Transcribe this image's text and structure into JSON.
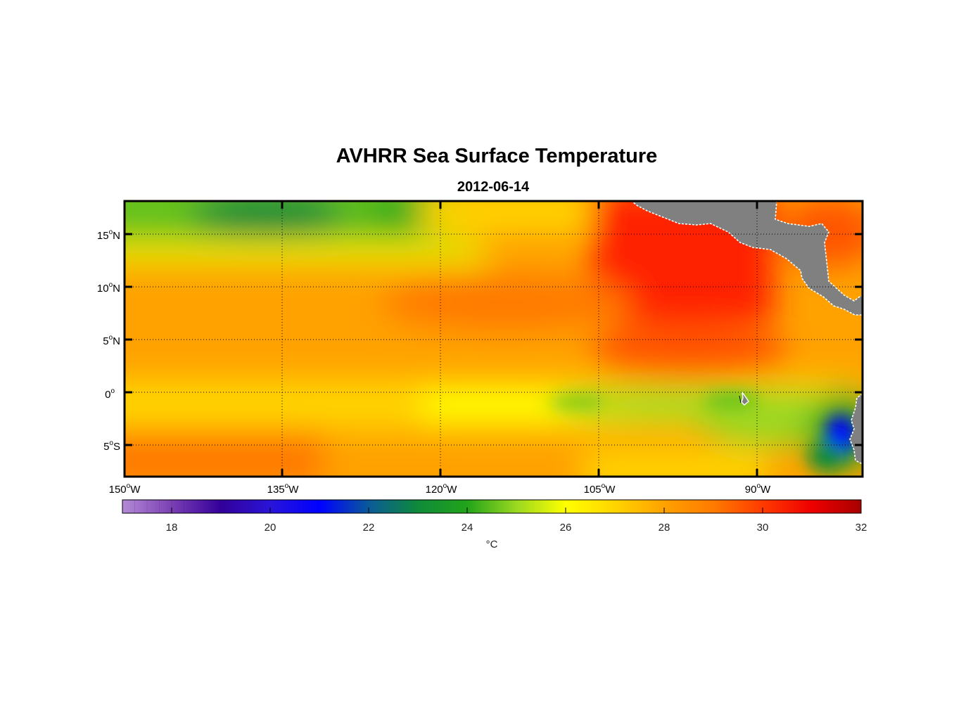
{
  "title": "AVHRR Sea Surface Temperature",
  "subtitle": "2012-06-14",
  "lat_labels": [
    {
      "deg": "15",
      "hemi": "N"
    },
    {
      "deg": "10",
      "hemi": "N"
    },
    {
      "deg": "5",
      "hemi": "N"
    },
    {
      "deg": "0",
      "hemi": ""
    },
    {
      "deg": "5",
      "hemi": "S"
    }
  ],
  "lon_labels": [
    {
      "deg": "150",
      "hemi": "W"
    },
    {
      "deg": "135",
      "hemi": "W"
    },
    {
      "deg": "120",
      "hemi": "W"
    },
    {
      "deg": "105",
      "hemi": "W"
    },
    {
      "deg": "90",
      "hemi": "W"
    }
  ],
  "colorbar": {
    "ticks": [
      "18",
      "20",
      "22",
      "24",
      "26",
      "28",
      "30",
      "32"
    ],
    "min": 17,
    "max": 32,
    "unit": "°C"
  },
  "colors": {
    "land": "#808080",
    "sst_22": "#0f8a3a",
    "sst_24": "#63c21e",
    "sst_26": "#ffff00",
    "sst_28": "#ffa200",
    "sst_30": "#ff2400"
  }
}
